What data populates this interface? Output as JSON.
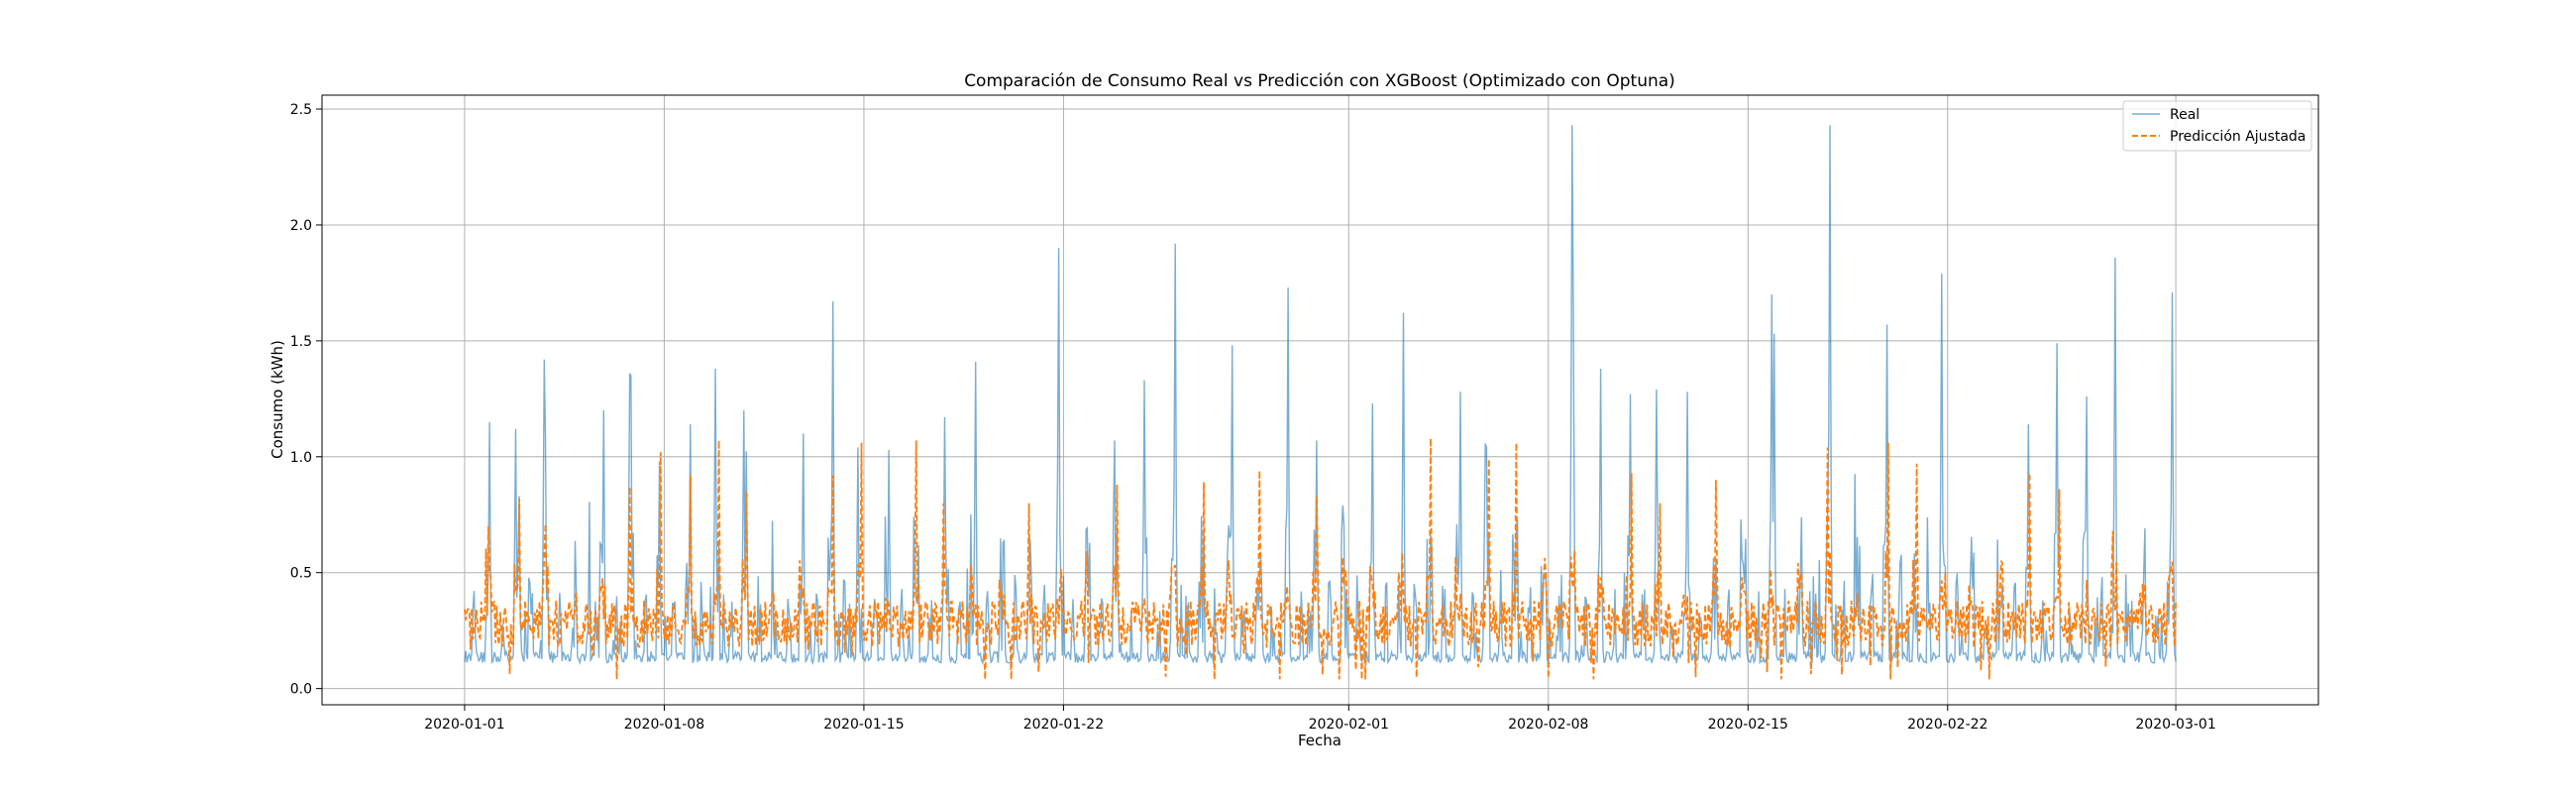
{
  "chart_data": {
    "type": "line",
    "title": "Comparación de Consumo Real vs Predicción con XGBoost (Optimizado con Optuna)",
    "xlabel": "Fecha",
    "ylabel": "Consumo (kWh)",
    "xlim": [
      "2019-12-27",
      "2020-03-06"
    ],
    "ylim": [
      -0.07,
      2.56
    ],
    "x_ticks": [
      "2020-01-01",
      "2020-01-08",
      "2020-01-15",
      "2020-01-22",
      "2020-02-01",
      "2020-02-08",
      "2020-02-15",
      "2020-02-22",
      "2020-03-01"
    ],
    "y_ticks": [
      "0.0",
      "0.5",
      "1.0",
      "1.5",
      "2.0",
      "2.5"
    ],
    "grid": true,
    "legend_position": "top-right",
    "x_range": [
      "2020-01-01",
      "2020-03-01"
    ],
    "sampling": "hourly",
    "series": [
      {
        "name": "Real",
        "color": "#1f77b4",
        "style": "solid",
        "baseline": 0.11,
        "peaks": [
          [
            "2020-01-01",
            1.15
          ],
          [
            "2020-01-02",
            0.83
          ],
          [
            "2020-01-02",
            1.12
          ],
          [
            "2020-01-03",
            1.09
          ],
          [
            "2020-01-03",
            1.42
          ],
          [
            "2020-01-05",
            1.2
          ],
          [
            "2020-01-06",
            1.36
          ],
          [
            "2020-01-06",
            1.35
          ],
          [
            "2020-01-07",
            0.98
          ],
          [
            "2020-01-08",
            1.14
          ],
          [
            "2020-01-09",
            0.99
          ],
          [
            "2020-01-09",
            1.38
          ],
          [
            "2020-01-10",
            1.2
          ],
          [
            "2020-01-12",
            1.1
          ],
          [
            "2020-01-13",
            1.67
          ],
          [
            "2020-01-14",
            1.04
          ],
          [
            "2020-01-17",
            1.17
          ],
          [
            "2020-01-18",
            1.41
          ],
          [
            "2020-01-21",
            1.9
          ],
          [
            "2020-01-23",
            1.07
          ],
          [
            "2020-01-24",
            1.33
          ],
          [
            "2020-01-25",
            1.92
          ],
          [
            "2020-01-27",
            1.48
          ],
          [
            "2020-01-29",
            1.73
          ],
          [
            "2020-01-30",
            1.07
          ],
          [
            "2020-02-01",
            1.23
          ],
          [
            "2020-02-02",
            1.62
          ],
          [
            "2020-02-04",
            1.28
          ],
          [
            "2020-02-05",
            1.04
          ],
          [
            "2020-02-08",
            2.43
          ],
          [
            "2020-02-08",
            1.63
          ],
          [
            "2020-02-09",
            1.38
          ],
          [
            "2020-02-10",
            1.27
          ],
          [
            "2020-02-11",
            1.29
          ],
          [
            "2020-02-12",
            1.28
          ],
          [
            "2020-02-15",
            1.7
          ],
          [
            "2020-02-15",
            1.53
          ],
          [
            "2020-02-17",
            2.43
          ],
          [
            "2020-02-19",
            1.57
          ],
          [
            "2020-02-21",
            1.79
          ],
          [
            "2020-02-24",
            1.14
          ],
          [
            "2020-02-25",
            1.49
          ],
          [
            "2020-02-26",
            1.26
          ],
          [
            "2020-02-27",
            1.86
          ],
          [
            "2020-02-29",
            1.71
          ]
        ]
      },
      {
        "name": "Predicción Ajustada",
        "color": "#ff7f0e",
        "style": "dashed",
        "baseline": 0.28,
        "peaks": [
          [
            "2020-01-01",
            0.7
          ],
          [
            "2020-01-02",
            0.82
          ],
          [
            "2020-01-03",
            0.71
          ],
          [
            "2020-01-06",
            0.87
          ],
          [
            "2020-01-07",
            1.02
          ],
          [
            "2020-01-08",
            0.92
          ],
          [
            "2020-01-09",
            1.07
          ],
          [
            "2020-01-10",
            0.85
          ],
          [
            "2020-01-13",
            0.92
          ],
          [
            "2020-01-14",
            1.06
          ],
          [
            "2020-01-16",
            1.07
          ],
          [
            "2020-01-17",
            0.8
          ],
          [
            "2020-01-20",
            0.8
          ],
          [
            "2020-01-23",
            0.88
          ],
          [
            "2020-01-26",
            0.89
          ],
          [
            "2020-01-28",
            0.94
          ],
          [
            "2020-01-30",
            0.83
          ],
          [
            "2020-02-03",
            1.08
          ],
          [
            "2020-02-05",
            0.99
          ],
          [
            "2020-02-06",
            1.06
          ],
          [
            "2020-02-10",
            0.93
          ],
          [
            "2020-02-11",
            0.8
          ],
          [
            "2020-02-13",
            0.9
          ],
          [
            "2020-02-17",
            1.04
          ],
          [
            "2020-02-19",
            1.06
          ],
          [
            "2020-02-20",
            0.97
          ],
          [
            "2020-02-24",
            0.93
          ],
          [
            "2020-02-25",
            0.86
          ],
          [
            "2020-02-27",
            0.68
          ]
        ]
      }
    ]
  }
}
